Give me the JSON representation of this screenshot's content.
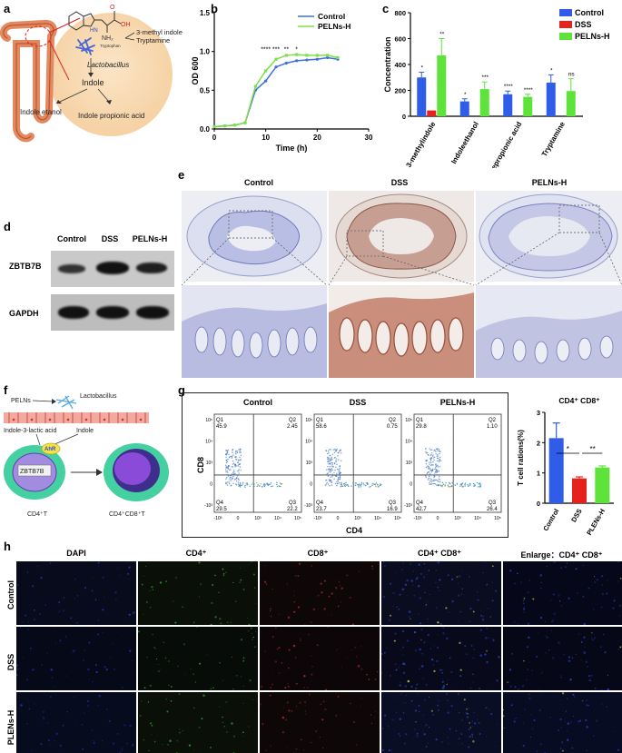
{
  "panels": {
    "a": "a",
    "b": "b",
    "c": "c",
    "d": "d",
    "e": "e",
    "f": "f",
    "g": "g",
    "h": "h"
  },
  "panel_a": {
    "nh2": "NH₂",
    "oh": "OH",
    "nh": "HN",
    "o": "O",
    "tryptophan": "Tryptophan",
    "methyl_indole": "3-methyl indole",
    "tryptamine": "Tryptamine",
    "lactobacillus": "Lactobacillus",
    "indole": "Indole",
    "indole_etanol": "Indole etanol",
    "indole_propionic": "Indole propionic acid"
  },
  "chart_data": [
    {
      "id": "b",
      "type": "line",
      "xlabel": "Time (h)",
      "ylabel": "OD 600",
      "xlim": [
        0,
        30
      ],
      "ylim": [
        0,
        1.5
      ],
      "xticks": [
        "0",
        "10",
        "20",
        "30"
      ],
      "yticks": [
        "0.0",
        "0.5",
        "1.0",
        "1.5"
      ],
      "legend_position": "top-right",
      "x": [
        0,
        2,
        4,
        6,
        8,
        10,
        12,
        14,
        16,
        18,
        20,
        22,
        24
      ],
      "series": [
        {
          "name": "Control",
          "color": "#3e6fe0",
          "values": [
            0.03,
            0.04,
            0.05,
            0.08,
            0.5,
            0.62,
            0.8,
            0.85,
            0.88,
            0.89,
            0.9,
            0.92,
            0.9
          ]
        },
        {
          "name": "PELNs-H",
          "color": "#7de04a",
          "values": [
            0.03,
            0.04,
            0.05,
            0.08,
            0.55,
            0.75,
            0.9,
            0.95,
            0.96,
            0.95,
            0.95,
            0.95,
            0.92
          ]
        }
      ],
      "annotations": [
        {
          "x": 10,
          "text": "****"
        },
        {
          "x": 12,
          "text": "***"
        },
        {
          "x": 14,
          "text": "**"
        },
        {
          "x": 16,
          "text": "*"
        }
      ]
    },
    {
      "id": "c",
      "type": "bar",
      "ylabel": "Concentration",
      "ylim": [
        0,
        800
      ],
      "yticks": [
        "0",
        "200",
        "400",
        "600",
        "800"
      ],
      "categories": [
        "3-methylindole",
        "Indoleethanol",
        "Indolepropionic acid",
        "Tryptamine"
      ],
      "legend_position": "top-right",
      "series": [
        {
          "name": "Control",
          "color": "#2f5de8",
          "values": [
            300,
            115,
            170,
            260
          ],
          "errors": [
            40,
            20,
            25,
            60
          ]
        },
        {
          "name": "DSS",
          "color": "#e5231c",
          "values": [
            45,
            0,
            0,
            0
          ],
          "errors": [
            0,
            0,
            0,
            0
          ]
        },
        {
          "name": "PELNs-H",
          "color": "#5de33a",
          "values": [
            470,
            210,
            150,
            195
          ],
          "errors": [
            130,
            55,
            20,
            95
          ]
        }
      ],
      "significance": [
        "*",
        "**",
        "*",
        "***",
        "****",
        "****",
        "*",
        "ns"
      ]
    },
    {
      "id": "g-bar",
      "type": "bar",
      "title": "CD4⁺ CD8⁺",
      "ylabel": "T cell rations(%)",
      "ylim": [
        0,
        3
      ],
      "yticks": [
        "0",
        "1",
        "2",
        "3"
      ],
      "categories": [
        "Control",
        "DSS",
        "PLENs-H"
      ],
      "values": [
        2.15,
        0.82,
        1.18
      ],
      "errors": [
        0.5,
        0.05,
        0.05
      ],
      "colors": [
        "#2f5de8",
        "#e5231c",
        "#5de33a"
      ],
      "significance": [
        "*",
        "**"
      ]
    },
    {
      "id": "g-flow",
      "type": "scatter",
      "xlabel": "CD4",
      "ylabel": "CD8",
      "panels": [
        {
          "title": "Control",
          "q1": "Q1",
          "q1v": "45.9",
          "q2": "Q2",
          "q2v": "2.45",
          "q3": "Q3",
          "q3v": "22.2",
          "q4": "Q4",
          "q4v": "29.5"
        },
        {
          "title": "DSS",
          "q1": "Q1",
          "q1v": "58.6",
          "q2": "Q2",
          "q2v": "0.75",
          "q3": "Q3",
          "q3v": "16.9",
          "q4": "Q4",
          "q4v": "23.7"
        },
        {
          "title": "PELNs-H",
          "q1": "Q1",
          "q1v": "29.8",
          "q2": "Q2",
          "q2v": "1.10",
          "q3": "Q3",
          "q3v": "26.4",
          "q4": "Q4",
          "q4v": "42.7"
        }
      ],
      "yticks": [
        "10⁵",
        "10⁴",
        "10³",
        "0",
        "-10³"
      ],
      "xticks": [
        "-10³",
        "0",
        "10³",
        "10⁴",
        "10⁵"
      ]
    }
  ],
  "panel_d": {
    "cols": [
      "Control",
      "DSS",
      "PELNs-H"
    ],
    "rows": [
      "ZBTB7B",
      "GAPDH"
    ]
  },
  "panel_e": {
    "cols": [
      "Control",
      "DSS",
      "PELNs-H"
    ]
  },
  "panel_f": {
    "pelns": "PELNs",
    "lactobacillus": "Lactobacillus",
    "ila": "Indole-3-lactic acid",
    "indole": "Indole",
    "ahr": "AhR",
    "zbtb7b": "ZBTB7B",
    "cd4t": "CD4⁺T",
    "cd4cd8t": "CD4⁺CD8⁺T"
  },
  "panel_h": {
    "cols": [
      "DAPI",
      "CD4⁺",
      "CD8⁺",
      "CD4⁺ CD8⁺",
      "Enlarge：CD4⁺ CD8⁺"
    ],
    "rows": [
      "Control",
      "DSS",
      "PLENs-H"
    ]
  }
}
